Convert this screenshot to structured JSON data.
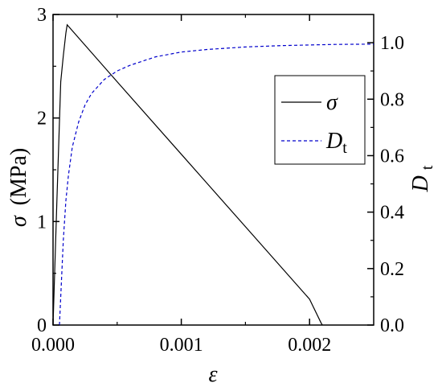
{
  "chart_data": {
    "type": "line",
    "title": "",
    "xlabel": "ε",
    "ylabel": {
      "symbol": "σ",
      "unit": "(MPa)"
    },
    "y2label": {
      "symbol": "D",
      "subscript": "t"
    },
    "xlim": [
      0,
      0.0025
    ],
    "ylim": [
      0,
      3
    ],
    "y2lim": [
      0,
      1.1
    ],
    "xticks": [
      0,
      0.001,
      0.002
    ],
    "xtick_labels": [
      "0.000",
      "0.001",
      "0.002"
    ],
    "yticks": [
      0,
      1,
      2,
      3
    ],
    "ytick_labels": [
      "0",
      "1",
      "2",
      "3"
    ],
    "y2ticks": [
      0,
      0.2,
      0.4,
      0.6,
      0.8,
      1.0
    ],
    "y2tick_labels": [
      "0.0",
      "0.2",
      "0.4",
      "0.6",
      "0.8",
      "1.0"
    ],
    "grid": false,
    "legend": {
      "position": "right",
      "entries": [
        {
          "symbol": "σ",
          "subscript": "",
          "series": "sigma"
        },
        {
          "symbol": "D",
          "subscript": "t",
          "series": "damage"
        }
      ]
    },
    "series": [
      {
        "name": "σ",
        "axis": "left",
        "color": "#000000",
        "style": "solid",
        "x": [
          0,
          3e-05,
          6e-05,
          8e-05,
          0.0001,
          0.00011,
          0.0005,
          0.001,
          0.0015,
          0.002,
          0.00209,
          0.0021
        ],
        "y": [
          0,
          1.2,
          2.35,
          2.6,
          2.82,
          2.9,
          2.35,
          1.65,
          0.95,
          0.25,
          0.02,
          0.0
        ]
      },
      {
        "name": "D",
        "name_subscript": "t",
        "axis": "right",
        "color": "#0000cc",
        "style": "dashed",
        "x": [
          5e-05,
          8e-05,
          0.0001,
          0.00012,
          0.00015,
          0.0002,
          0.00025,
          0.0003,
          0.0004,
          0.0005,
          0.0006,
          0.0008,
          0.001,
          0.0012,
          0.0015,
          0.0018,
          0.002,
          0.0022,
          0.0025
        ],
        "y": [
          0.0,
          0.3,
          0.44,
          0.53,
          0.63,
          0.72,
          0.78,
          0.82,
          0.87,
          0.9,
          0.92,
          0.95,
          0.967,
          0.976,
          0.985,
          0.99,
          0.992,
          0.994,
          0.995
        ]
      }
    ]
  }
}
